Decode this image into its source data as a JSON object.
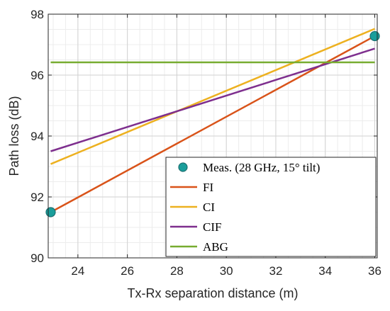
{
  "chart_data": {
    "type": "line",
    "xlabel": "Tx-Rx separation distance (m)",
    "ylabel": "Path loss (dB)",
    "xlim": [
      22.8,
      36.1
    ],
    "ylim": [
      90,
      98
    ],
    "xticks": [
      24,
      26,
      28,
      30,
      32,
      34,
      36
    ],
    "yticks": [
      90,
      92,
      94,
      96,
      98
    ],
    "xminor_step": 0.5,
    "grid": "major and minor",
    "legend_position": "bottom-right",
    "series": [
      {
        "name": "Meas. (28 GHz, 15° tilt)",
        "kind": "scatter",
        "color": "#1a9e9b",
        "points": [
          [
            22.9,
            91.5
          ],
          [
            36.0,
            97.28
          ]
        ]
      },
      {
        "name": "FI",
        "kind": "line",
        "color": "#d95319",
        "points": [
          [
            22.9,
            91.5
          ],
          [
            36.0,
            97.28
          ]
        ]
      },
      {
        "name": "CI",
        "kind": "line",
        "color": "#edb120",
        "points": [
          [
            22.9,
            93.08
          ],
          [
            36.0,
            97.52
          ]
        ]
      },
      {
        "name": "CIF",
        "kind": "line",
        "color": "#7e2f8e",
        "points": [
          [
            22.9,
            93.5
          ],
          [
            36.0,
            96.87
          ]
        ]
      },
      {
        "name": "ABG",
        "kind": "line",
        "color": "#77ac30",
        "points": [
          [
            22.9,
            96.42
          ],
          [
            36.0,
            96.42
          ]
        ]
      }
    ]
  }
}
